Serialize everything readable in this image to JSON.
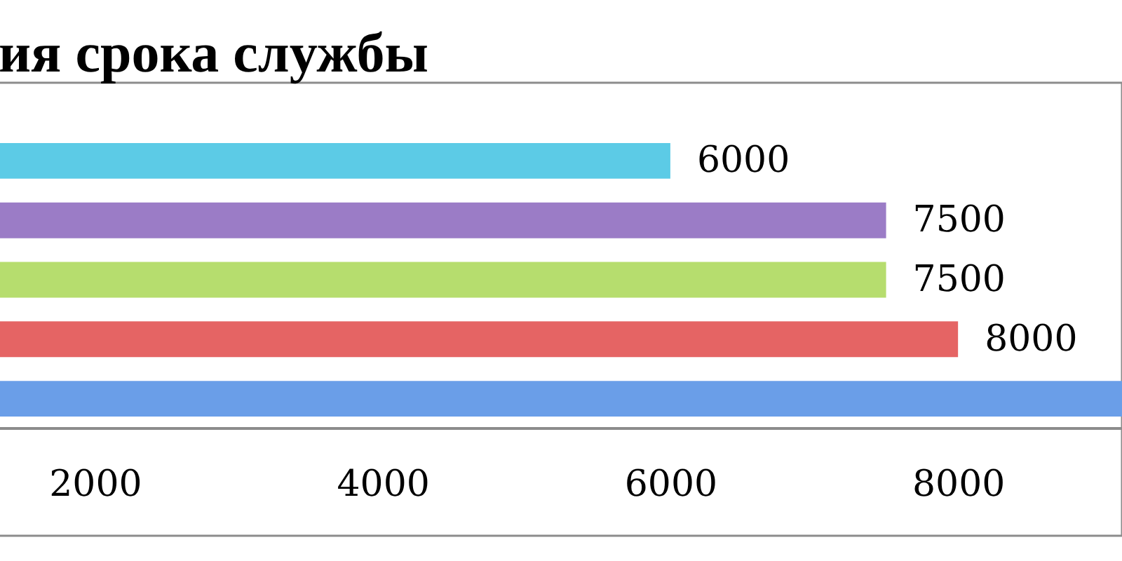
{
  "chart_data": {
    "type": "bar",
    "orientation": "horizontal",
    "title": "ия срока службы",
    "categories": [
      null,
      null,
      null,
      null,
      null
    ],
    "values": [
      6000,
      7500,
      7500,
      8000,
      9140
    ],
    "colors": [
      "#5ccbe6",
      "#9b7cc6",
      "#b6dd6e",
      "#e56464",
      "#6a9ee8"
    ],
    "value_labels": [
      "6000",
      "7500",
      "7500",
      "8000",
      null
    ],
    "xlim": [
      1330,
      9140
    ],
    "xticks": [
      2000,
      4000,
      6000,
      8000
    ],
    "tick_labels": "x"
  }
}
